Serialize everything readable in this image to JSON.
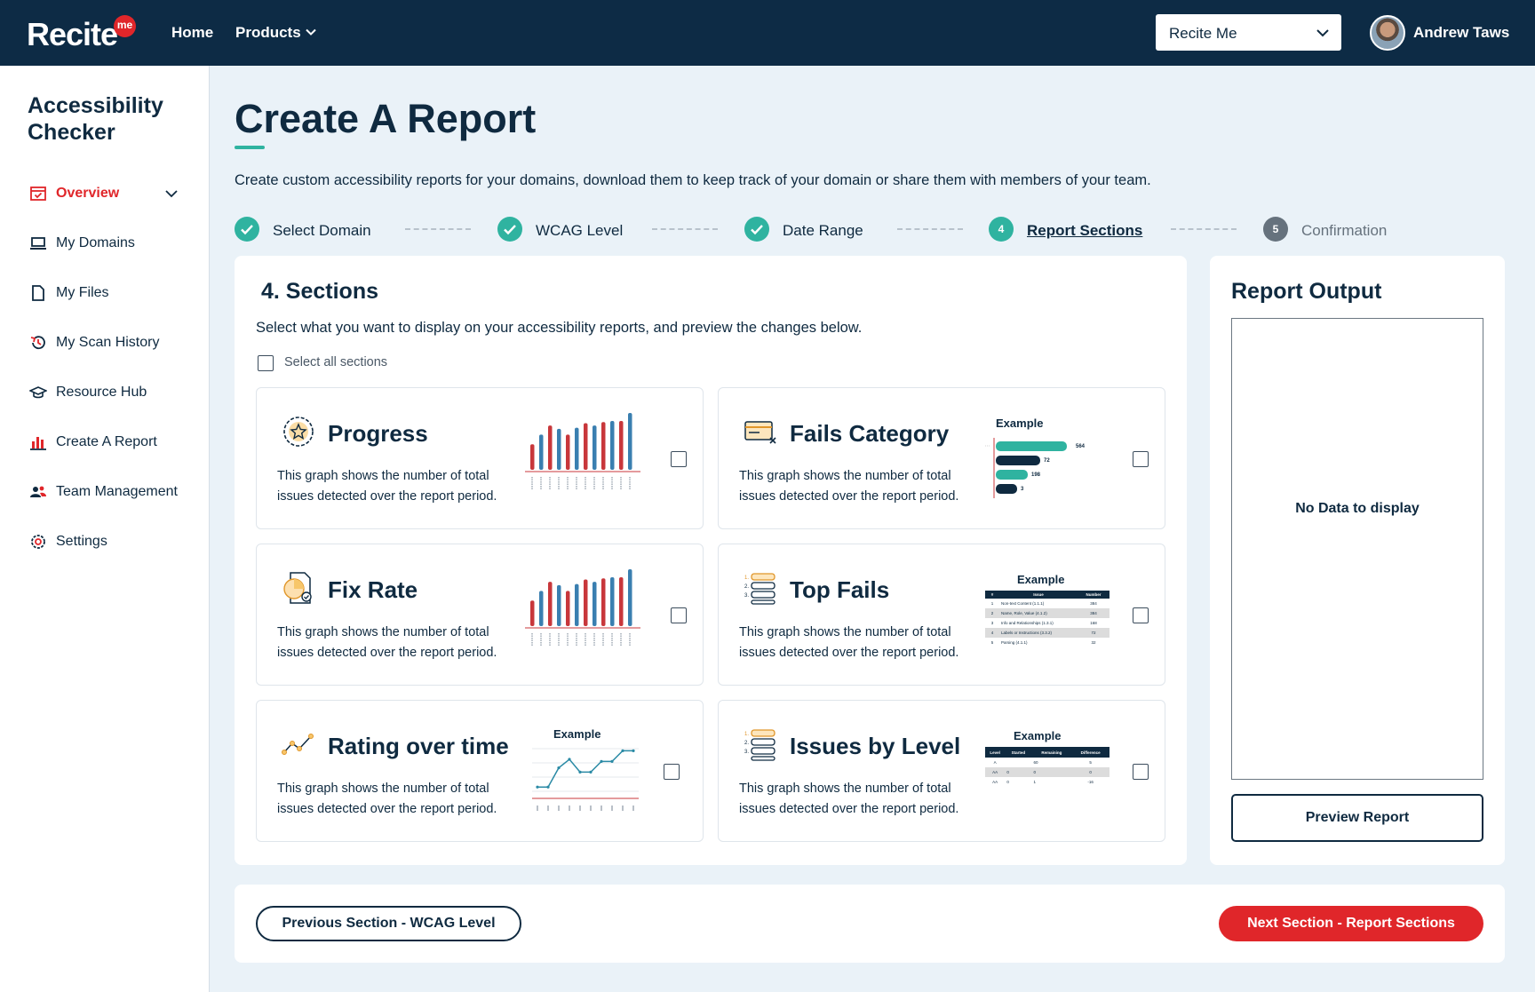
{
  "header": {
    "logo_text": "Recite",
    "logo_badge": "me",
    "nav": [
      "Home",
      "Products"
    ],
    "org_select_value": "Recite Me",
    "user_name": "Andrew Taws"
  },
  "sidebar": {
    "title": "Accessibility Checker",
    "items": [
      {
        "label": "Overview",
        "icon": "calendar-check-icon",
        "active": true
      },
      {
        "label": "My Domains",
        "icon": "laptop-icon"
      },
      {
        "label": "My Files",
        "icon": "file-icon"
      },
      {
        "label": "My Scan History",
        "icon": "history-icon"
      },
      {
        "label": "Resource Hub",
        "icon": "graduation-cap-icon"
      },
      {
        "label": "Create A Report",
        "icon": "bar-chart-icon"
      },
      {
        "label": "Team Management",
        "icon": "team-icon"
      },
      {
        "label": "Settings",
        "icon": "gear-icon"
      }
    ]
  },
  "page": {
    "title": "Create A Report",
    "description": "Create custom accessibility reports for your domains, download them to keep track of your domain or share them with members of your team."
  },
  "steps": [
    {
      "label": "Select Domain",
      "status": "done"
    },
    {
      "label": "WCAG Level",
      "status": "done"
    },
    {
      "label": "Date Range",
      "status": "done"
    },
    {
      "label": "Report Sections",
      "number": "4",
      "status": "current"
    },
    {
      "label": "Confirmation",
      "number": "5",
      "status": "todo"
    }
  ],
  "sections": {
    "title": "4. Sections",
    "description": "Select what you want to display on your accessibility reports, and preview the changes below.",
    "select_all_label": "Select all sections",
    "example_label": "Example",
    "options": [
      {
        "title": "Progress",
        "desc": "This graph shows the number of total issues detected over the report period.",
        "icon": "badge-star-icon",
        "checked": false
      },
      {
        "title": "Fails Category",
        "desc": "This graph shows the number of total issues detected over the report period.",
        "icon": "card-x-icon",
        "checked": false
      },
      {
        "title": "Fix Rate",
        "desc": "This graph shows the number of total issues detected over the report period.",
        "icon": "pie-document-icon",
        "checked": false
      },
      {
        "title": "Top Fails",
        "desc": "This graph shows the number of total issues detected over the report period.",
        "icon": "numbered-list-icon",
        "checked": false
      },
      {
        "title": "Rating over time",
        "desc": "This graph shows the number of total issues detected over the report period.",
        "icon": "trend-line-icon",
        "checked": false
      },
      {
        "title": "Issues by Level",
        "desc": "This graph shows the number of total issues detected over the report period.",
        "icon": "numbered-list-icon",
        "checked": false
      }
    ],
    "fails_category_values": [
      "564",
      "72",
      "198",
      "3"
    ],
    "top_fails_headers": [
      "#",
      "Issue",
      "Number"
    ],
    "top_fails_rows": [
      [
        "1",
        "Non-text Content (1.1.1)",
        "384"
      ],
      [
        "2",
        "Name, Role, Value (4.1.2)",
        "384"
      ],
      [
        "3",
        "Info and Relationships (1.3.1)",
        "168"
      ],
      [
        "4",
        "Labels or Instructions (3.3.2)",
        "72"
      ],
      [
        "5",
        "Parsing (4.1.1)",
        "32"
      ]
    ],
    "issues_by_level_headers": [
      "Level",
      "Started",
      "Remaining",
      "Difference"
    ],
    "issues_by_level_rows": [
      [
        "A",
        "",
        "60",
        "5"
      ],
      [
        "AA",
        "0",
        "0",
        "0"
      ],
      [
        "AA",
        "0",
        "1",
        "-16"
      ]
    ]
  },
  "output": {
    "title": "Report Output",
    "empty_text": "No Data to display",
    "preview_button": "Preview Report"
  },
  "footer": {
    "prev_button": "Previous Section - WCAG Level",
    "next_button": "Next Section - Report Sections"
  },
  "colors": {
    "navy": "#0d2b45",
    "red": "#e0262a",
    "teal": "#2fb3a0",
    "bar_blue": "#3a7fb0",
    "bar_red": "#c8373b"
  },
  "chart_data": [
    {
      "type": "bar",
      "series": [
        {
          "values": [
            0.45,
            0.62,
            0.78,
            0.72,
            0.62,
            0.74,
            0.82,
            0.78,
            0.84,
            0.86,
            0.86,
            1.0
          ]
        }
      ]
    },
    {
      "type": "bar",
      "series": [
        {
          "values": [
            0.45,
            0.62,
            0.78,
            0.72,
            0.62,
            0.74,
            0.82,
            0.78,
            0.84,
            0.86,
            0.86,
            1.0
          ]
        }
      ]
    },
    {
      "type": "line",
      "values": [
        0.1,
        0.1,
        0.55,
        0.75,
        0.45,
        0.45,
        0.7,
        0.7,
        0.95,
        0.95
      ]
    }
  ]
}
